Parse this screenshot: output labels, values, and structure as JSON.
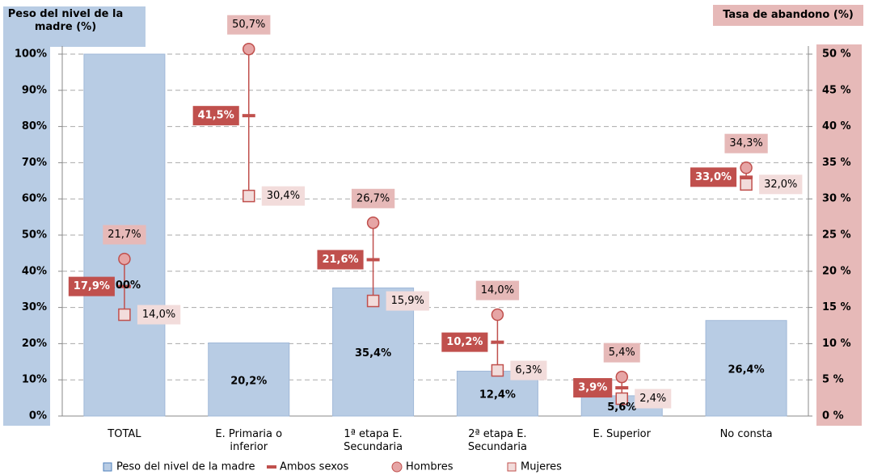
{
  "chart_data": {
    "type": "bar",
    "y_label": "Peso del nivel de la madre (%)",
    "y2_label": "Tasa de abandono (%)",
    "categories": [
      "TOTAL",
      "E. Primaria o inferior",
      "1ª etapa E. Secundaria",
      "2ª etapa E. Secundaria",
      "E. Superior",
      "No consta"
    ],
    "ylim": [
      0,
      100
    ],
    "yticks": [
      {
        "value": 0,
        "label": "0%"
      },
      {
        "value": 10,
        "label": "10%"
      },
      {
        "value": 20,
        "label": "20%"
      },
      {
        "value": 30,
        "label": "30%"
      },
      {
        "value": 40,
        "label": "40%"
      },
      {
        "value": 50,
        "label": "50%"
      },
      {
        "value": 60,
        "label": "60%"
      },
      {
        "value": 70,
        "label": "70%"
      },
      {
        "value": 80,
        "label": "80%"
      },
      {
        "value": 90,
        "label": "90%"
      },
      {
        "value": 100,
        "label": "100%"
      }
    ],
    "y2lim": [
      0,
      50
    ],
    "y2ticks": [
      {
        "value": 0,
        "label": "0 %"
      },
      {
        "value": 5,
        "label": "5 %"
      },
      {
        "value": 10,
        "label": "10 %"
      },
      {
        "value": 15,
        "label": "15 %"
      },
      {
        "value": 20,
        "label": "20 %"
      },
      {
        "value": 25,
        "label": "25 %"
      },
      {
        "value": 30,
        "label": "30 %"
      },
      {
        "value": 35,
        "label": "35 %"
      },
      {
        "value": 40,
        "label": "40 %"
      },
      {
        "value": 45,
        "label": "45 %"
      },
      {
        "value": 50,
        "label": "50 %"
      }
    ],
    "grid": true,
    "legend": "bottom",
    "series": [
      {
        "name": "Peso del nivel de la madre",
        "marker": "bar",
        "color": "#b8cce4",
        "values": [
          100,
          20.2,
          35.4,
          12.4,
          5.6,
          26.4
        ],
        "value_labels": [
          "100%",
          "20,2%",
          "35,4%",
          "12,4%",
          "5,6%",
          "26,4%"
        ]
      },
      {
        "name": "Ambos sexos",
        "marker": "dash",
        "axis": "y2",
        "color": "#c0504d",
        "values": [
          17.9,
          41.5,
          21.6,
          10.2,
          3.9,
          33.0
        ],
        "value_labels": [
          "17,9%",
          "41,5%",
          "21,6%",
          "10,2%",
          "3,9%",
          "33,0%"
        ]
      },
      {
        "name": "Hombres",
        "marker": "circle",
        "axis": "y2",
        "color": "#e6a5a5",
        "values": [
          21.7,
          50.7,
          26.7,
          14.0,
          5.4,
          34.3
        ],
        "value_labels": [
          "21,7%",
          "50,7%",
          "26,7%",
          "14,0%",
          "5,4%",
          "34,3%"
        ]
      },
      {
        "name": "Mujeres",
        "marker": "square",
        "axis": "y2",
        "color": "#f2dcdb",
        "values": [
          14.0,
          30.4,
          15.9,
          6.3,
          2.4,
          32.0
        ],
        "value_labels": [
          "14,0%",
          "30,4%",
          "15,9%",
          "6,3%",
          "2,4%",
          "32,0%"
        ]
      }
    ]
  }
}
